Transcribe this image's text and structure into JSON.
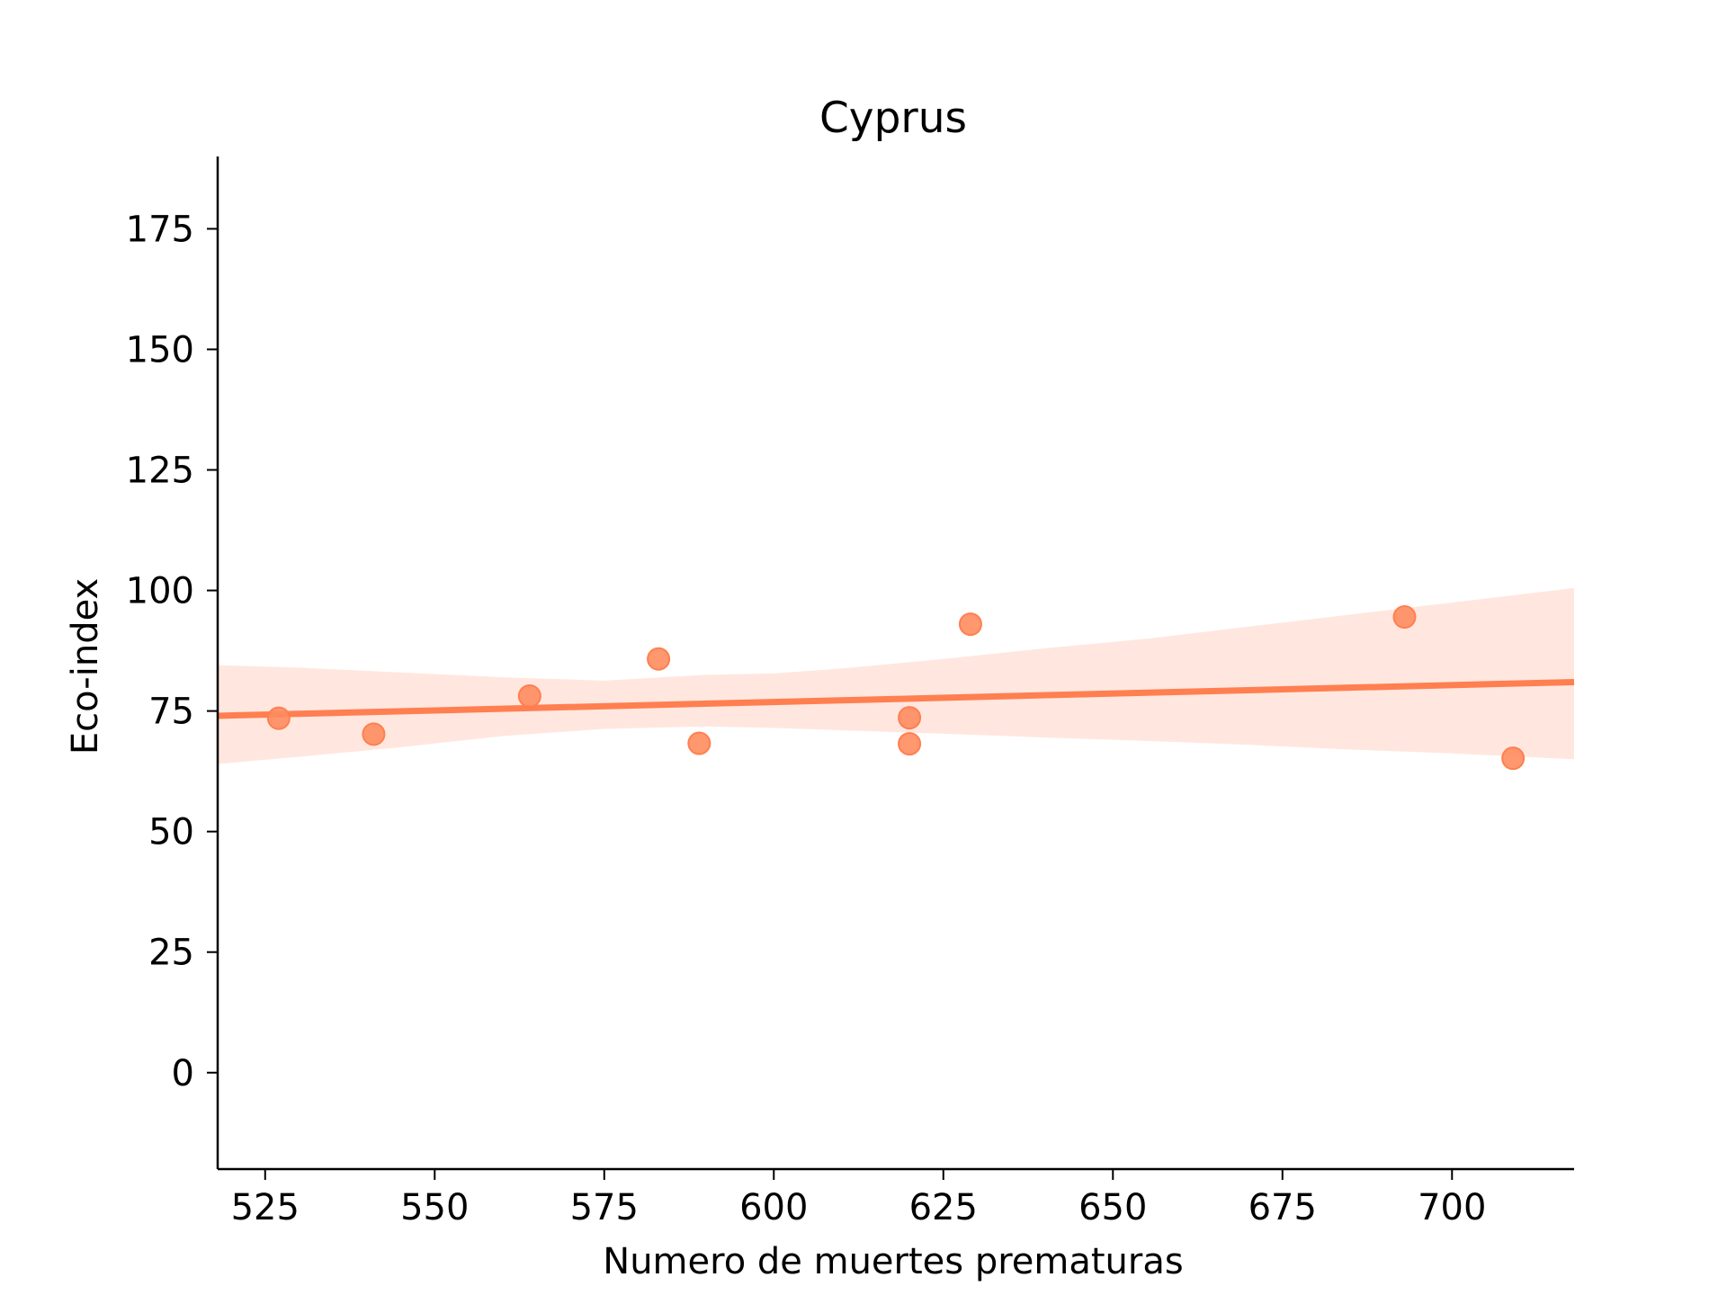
{
  "chart_data": {
    "type": "scatter",
    "title": "Cyprus",
    "xlabel": "Numero de muertes prematuras",
    "ylabel": "Eco-index",
    "xlim": [
      518,
      718
    ],
    "ylim": [
      -20,
      190
    ],
    "xticks": [
      525,
      550,
      575,
      600,
      625,
      650,
      675,
      700
    ],
    "yticks": [
      0,
      25,
      50,
      75,
      100,
      125,
      150,
      175
    ],
    "grid": false,
    "legend": "none",
    "points": [
      {
        "x": 527,
        "y": 73.5
      },
      {
        "x": 541,
        "y": 70.2
      },
      {
        "x": 564,
        "y": 78.1
      },
      {
        "x": 583,
        "y": 85.8
      },
      {
        "x": 589,
        "y": 68.3
      },
      {
        "x": 620,
        "y": 73.6
      },
      {
        "x": 620,
        "y": 68.2
      },
      {
        "x": 629,
        "y": 93.0
      },
      {
        "x": 693,
        "y": 94.5
      },
      {
        "x": 709,
        "y": 65.2
      }
    ],
    "regression_line": {
      "x": [
        518,
        718
      ],
      "y": [
        74.0,
        81.0
      ]
    },
    "confidence_band": {
      "x": [
        518,
        530,
        545,
        560,
        575,
        590,
        600,
        610,
        625,
        640,
        655,
        670,
        685,
        700,
        718
      ],
      "upper": [
        84.5,
        84.0,
        83.0,
        82.0,
        81.3,
        82.5,
        82.8,
        83.8,
        85.8,
        88.0,
        90.0,
        92.5,
        95.0,
        97.5,
        100.5
      ],
      "lower": [
        64.0,
        65.5,
        67.5,
        69.8,
        71.3,
        71.8,
        71.5,
        71.0,
        70.3,
        69.5,
        68.8,
        68.0,
        67.0,
        66.2,
        65.0
      ]
    },
    "colors": {
      "points": "#ff8c5f",
      "line": "#ff7f50",
      "band": "#ffe7df",
      "axes": "#000000"
    }
  }
}
